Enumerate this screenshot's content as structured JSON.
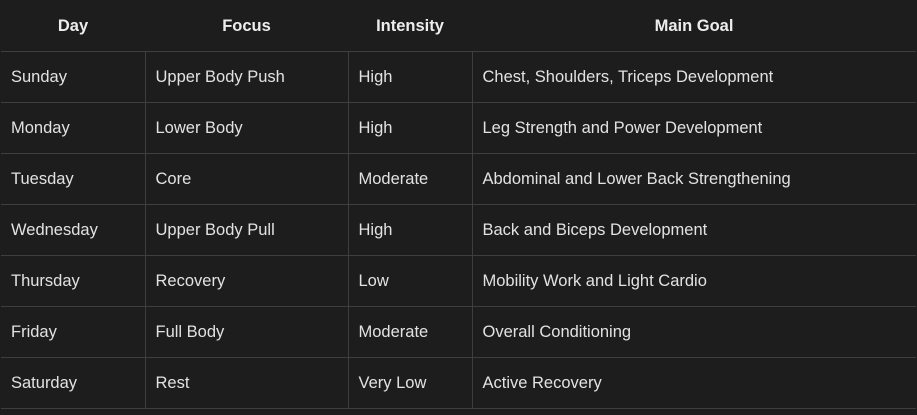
{
  "table": {
    "headers": [
      "Day",
      "Focus",
      "Intensity",
      "Main Goal"
    ],
    "rows": [
      [
        "Sunday",
        "Upper Body Push",
        "High",
        "Chest, Shoulders, Triceps Development"
      ],
      [
        "Monday",
        "Lower Body",
        "High",
        "Leg Strength and Power Development"
      ],
      [
        "Tuesday",
        "Core",
        "Moderate",
        "Abdominal and Lower Back Strengthening"
      ],
      [
        "Wednesday",
        "Upper Body Pull",
        "High",
        "Back and Biceps Development"
      ],
      [
        "Thursday",
        "Recovery",
        "Low",
        "Mobility Work and Light Cardio"
      ],
      [
        "Friday",
        "Full Body",
        "Moderate",
        "Overall Conditioning"
      ],
      [
        "Saturday",
        "Rest",
        "Very Low",
        "Active Recovery"
      ]
    ]
  }
}
